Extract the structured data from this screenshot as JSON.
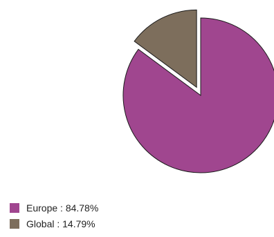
{
  "chart_data": {
    "type": "pie",
    "slices": [
      {
        "label": "Europe",
        "value": 84.78,
        "color": "#a0468f"
      },
      {
        "label": "Global",
        "value": 14.79,
        "color": "#7d6e5c"
      }
    ],
    "exploded_slice": "Global",
    "legend_placement": "bottom-left"
  },
  "legend": {
    "items": [
      {
        "text": "Europe : 84.78%",
        "color": "#a0468f"
      },
      {
        "text": "Global : 14.79%",
        "color": "#7d6e5c"
      }
    ]
  }
}
